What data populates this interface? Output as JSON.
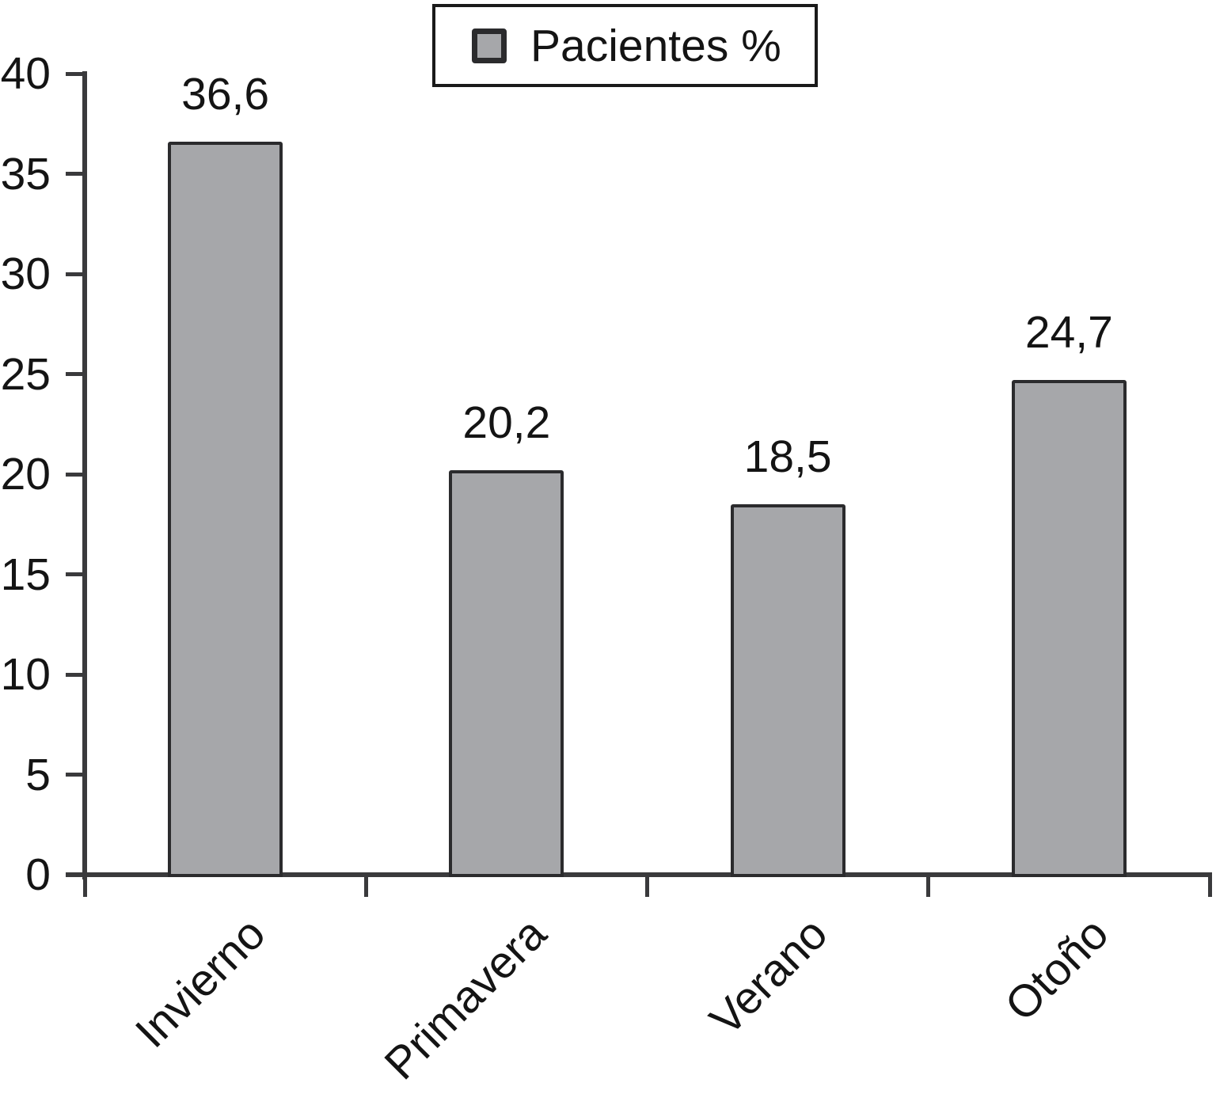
{
  "chart_data": {
    "type": "bar",
    "title": "",
    "xlabel": "",
    "ylabel": "",
    "categories": [
      "Invierno",
      "Primavera",
      "Verano",
      "Otoño"
    ],
    "values": [
      36.6,
      20.2,
      18.5,
      24.7
    ],
    "value_labels": [
      "36,6",
      "20,2",
      "18,5",
      "24,7"
    ],
    "series_name": "Pacientes %",
    "ylim": [
      0,
      40
    ],
    "yticks": [
      "0",
      "5",
      "10",
      "15",
      "20",
      "25",
      "30",
      "35",
      "40"
    ],
    "ytick_values": [
      0,
      5,
      10,
      15,
      20,
      25,
      30,
      35,
      40
    ],
    "grid": false,
    "x_tick_rotation_deg": 45,
    "legend": {
      "label": "Pacientes %",
      "position": "top-center"
    },
    "colors": {
      "bar_fill": "#a6a7aa",
      "bar_border": "#2b2b2d",
      "axis": "#3a3a3c",
      "text": "#141414",
      "background": "#ffffff",
      "legend_border": "#1a1a1a"
    }
  }
}
